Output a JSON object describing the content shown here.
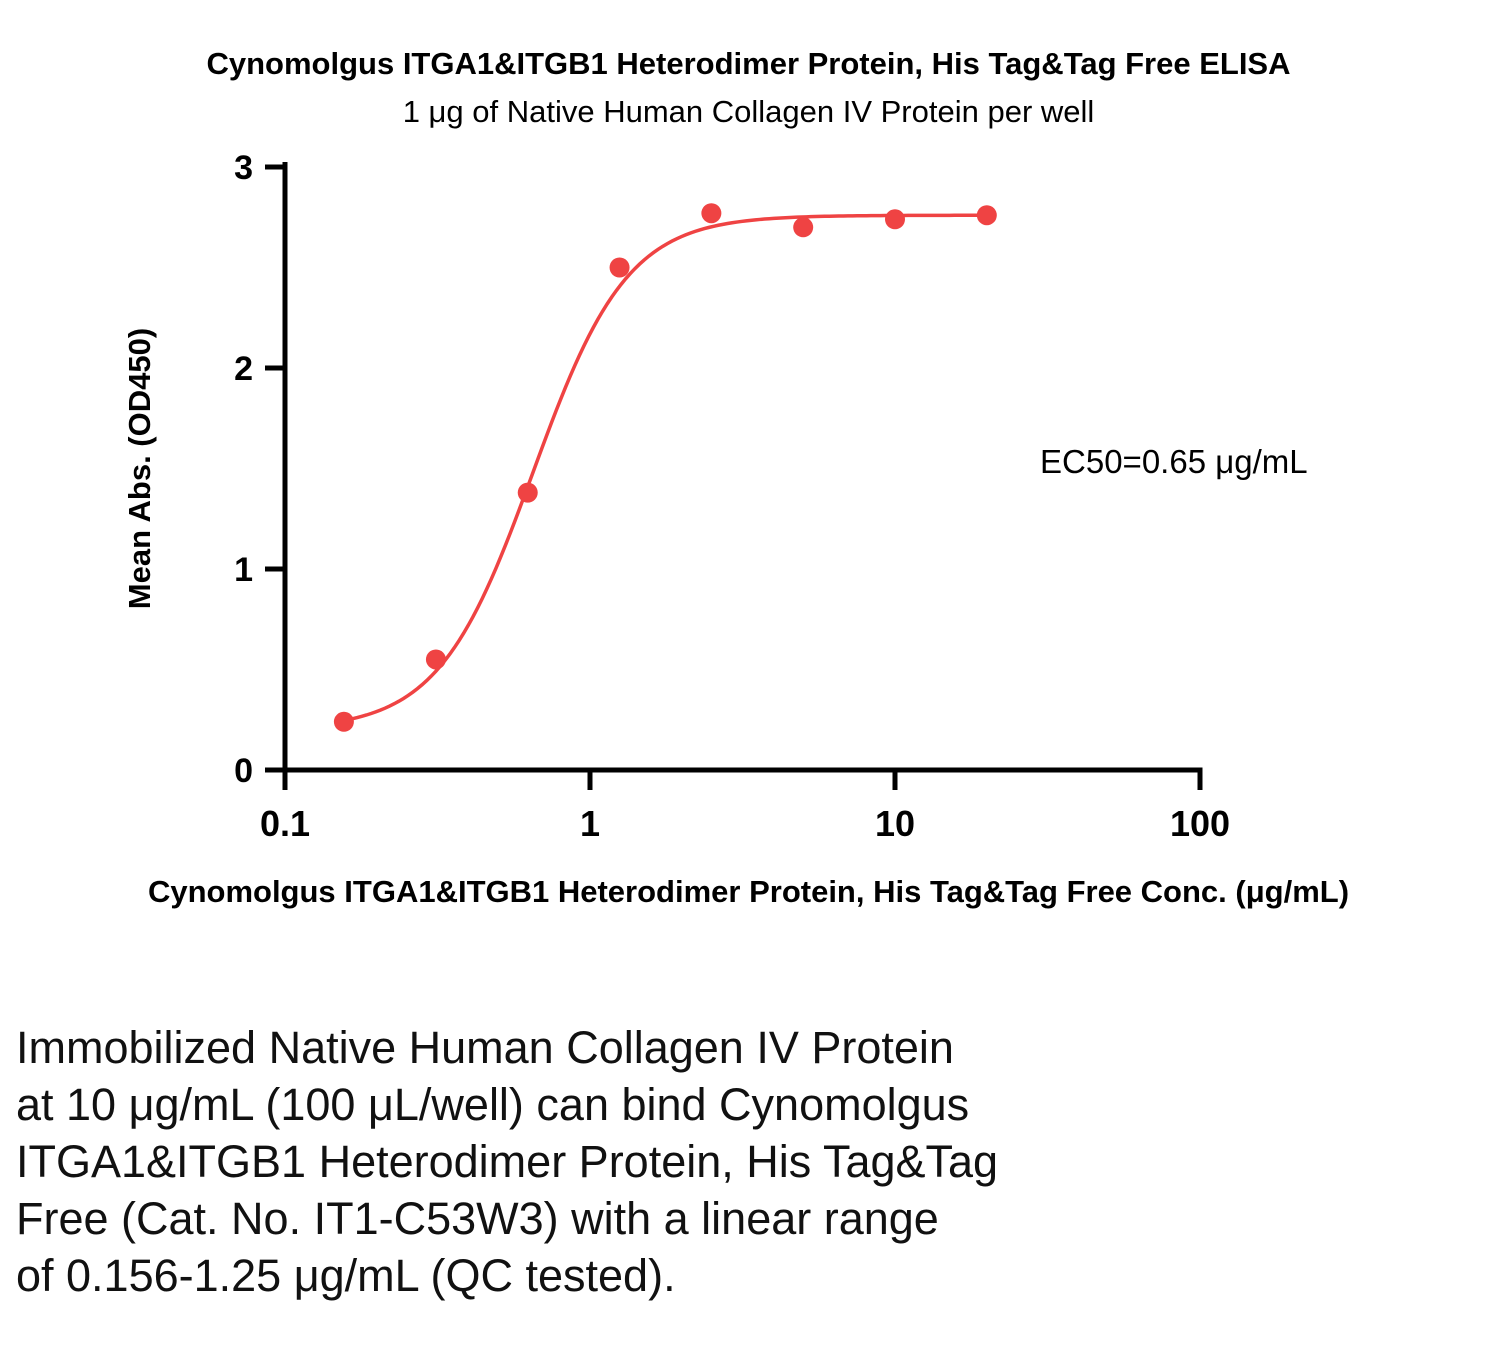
{
  "title": "Cynomolgus ITGA1&ITGB1 Heterodimer Protein, His Tag&Tag Free ELISA",
  "subtitle": "1 μg of Native Human Collagen IV Protein per well",
  "x_axis_caption": "Cynomolgus ITGA1&ITGB1 Heterodimer Protein, His Tag&Tag Free Conc. (μg/mL)",
  "description_lines": [
    "Immobilized Native Human Collagen IV Protein",
    "at 10 μg/mL (100 μL/well) can bind Cynomolgus",
    "ITGA1&ITGB1 Heterodimer Protein, His Tag&Tag",
    "Free (Cat. No. IT1-C53W3) with a linear range",
    "of 0.156-1.25 μg/mL (QC tested)."
  ],
  "chart_data": {
    "type": "scatter",
    "title": "Cynomolgus ITGA1&ITGB1 Heterodimer Protein, His Tag&Tag Free ELISA",
    "subtitle": "1 μg of Native Human Collagen IV Protein per well",
    "xlabel": "Cynomolgus ITGA1&ITGB1 Heterodimer Protein, His Tag&Tag Free Conc. (μg/mL)",
    "ylabel": "Mean Abs. (OD450)",
    "x_scale": "log",
    "xlim": [
      0.1,
      100
    ],
    "ylim": [
      0,
      3
    ],
    "x_ticks": [
      0.1,
      1,
      10,
      100
    ],
    "x_tick_labels": [
      "0.1",
      "1",
      "10",
      "100"
    ],
    "y_ticks": [
      0,
      1,
      2,
      3
    ],
    "y_tick_labels": [
      "0",
      "1",
      "2",
      "3"
    ],
    "x": [
      0.156,
      0.3125,
      0.625,
      1.25,
      2.5,
      5,
      10,
      20
    ],
    "y": [
      0.24,
      0.55,
      1.38,
      2.5,
      2.77,
      2.7,
      2.74,
      2.76
    ],
    "fit": {
      "model": "4PL",
      "bottom": 0.2,
      "top": 2.76,
      "ec50": 0.65,
      "hill": 2.8,
      "x_start": 0.15,
      "x_end": 20
    },
    "annotation": "EC50=0.65 μg/mL",
    "point_color": "#ef4343",
    "curve_color": "#ef4343",
    "axis_color": "#000000",
    "grid": false,
    "legend": "none"
  }
}
